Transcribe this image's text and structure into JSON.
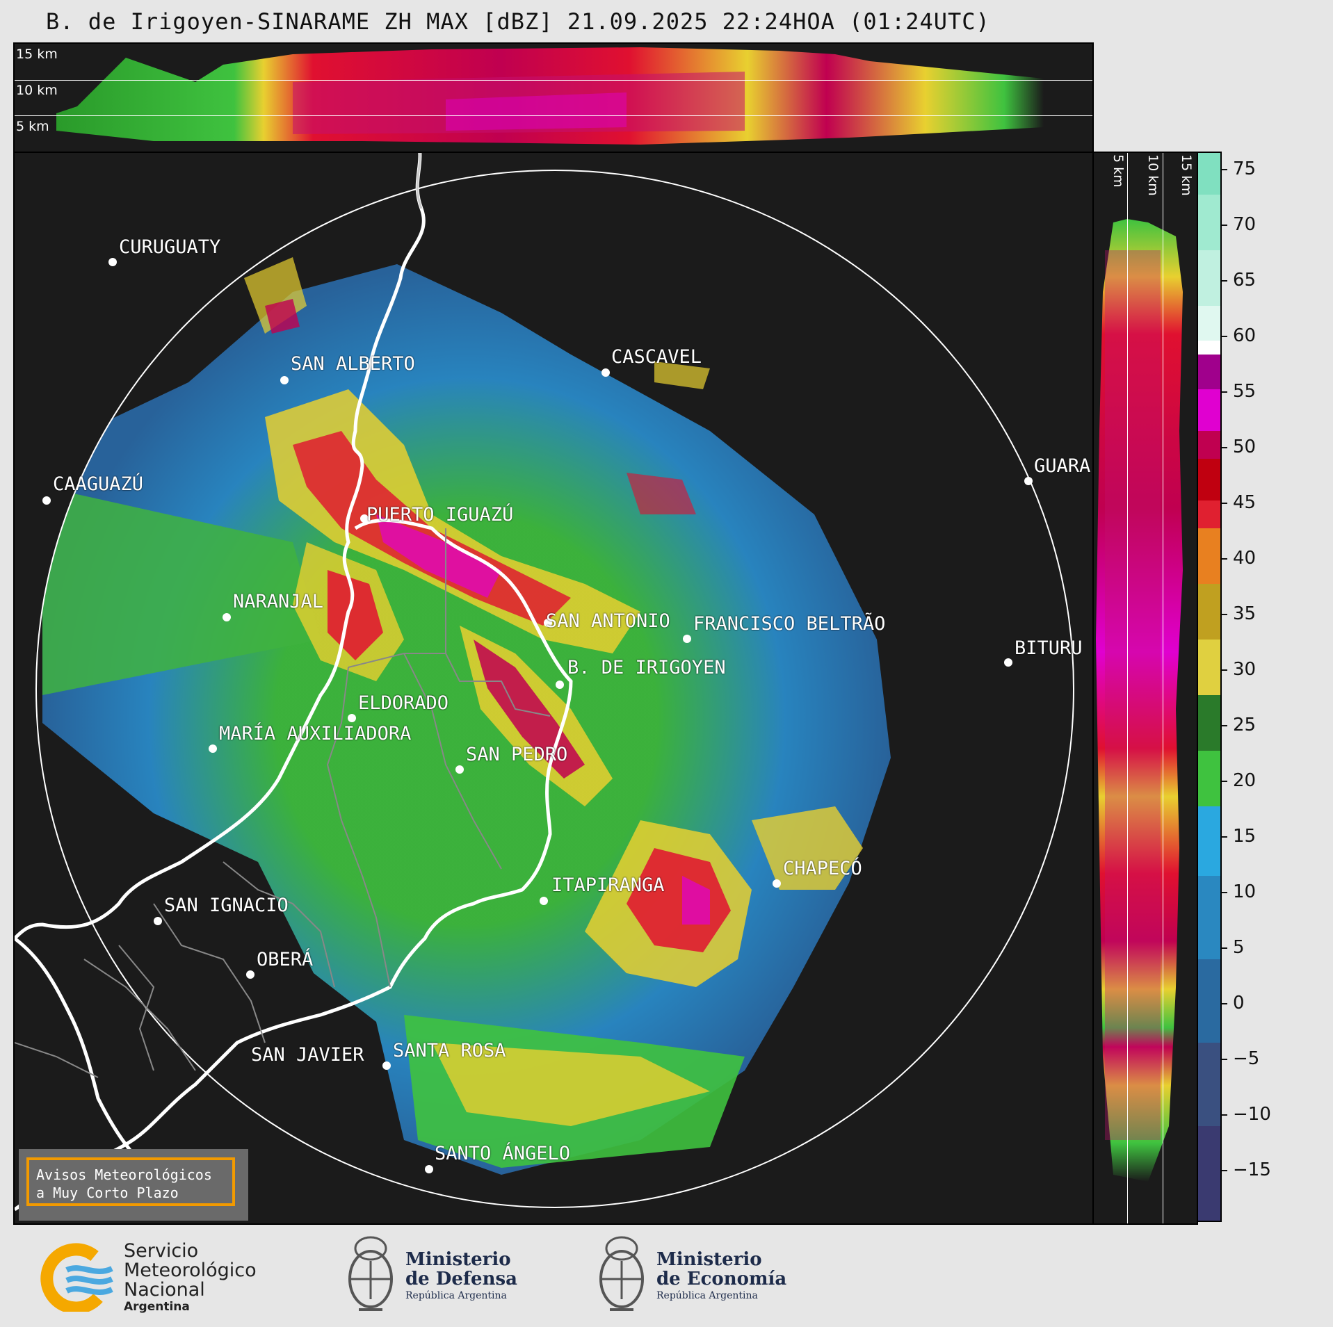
{
  "title": "B. de Irigoyen-SINARAME ZH MAX [dBZ] 21.09.2025 22:24HOA (01:24UTC)",
  "top_panel": {
    "height_labels": [
      "15 km",
      "10 km",
      "5 km"
    ]
  },
  "side_panel": {
    "height_labels": [
      "5 km",
      "10 km",
      "15 km"
    ]
  },
  "colorbar": {
    "unit": "dBZ",
    "ticks": [
      "75",
      "70",
      "65",
      "60",
      "55",
      "50",
      "45",
      "40",
      "35",
      "30",
      "25",
      "20",
      "15",
      "10",
      "5",
      "0",
      "−5",
      "−10",
      "−15"
    ]
  },
  "cities": [
    {
      "name": "CURUGUATY"
    },
    {
      "name": "SAN ALBERTO"
    },
    {
      "name": "CASCAVEL"
    },
    {
      "name": "CAAGUAZÚ"
    },
    {
      "name": "GUARA"
    },
    {
      "name": "PUERTO IGUAZÚ"
    },
    {
      "name": "NARANJAL"
    },
    {
      "name": "SAN ANTONIO"
    },
    {
      "name": "FRANCISCO BELTRÃO"
    },
    {
      "name": "BITURU"
    },
    {
      "name": "B. DE IRIGOYEN"
    },
    {
      "name": "ELDORADO"
    },
    {
      "name": "MARÍA AUXILIADORA"
    },
    {
      "name": "SAN PEDRO"
    },
    {
      "name": "CHAPECÓ"
    },
    {
      "name": "ITAPIRANGA"
    },
    {
      "name": "SAN IGNACIO"
    },
    {
      "name": "OBERÁ"
    },
    {
      "name": "SAN JAVIER"
    },
    {
      "name": "SANTA ROSA"
    },
    {
      "name": "SANTO ÁNGELO"
    }
  ],
  "aviso": {
    "line1": "Avisos Meteorológicos",
    "line2": "a Muy Corto Plazo"
  },
  "logos": {
    "smn": {
      "line1": "Servicio",
      "line2": "Meteorológico",
      "line3": "Nacional",
      "line4": "Argentina"
    },
    "defensa": {
      "line1": "Ministerio",
      "line2": "de Defensa",
      "line3": "República Argentina"
    },
    "economia": {
      "line1": "Ministerio",
      "line2": "de Economía",
      "line3": "República Argentina"
    }
  },
  "colors": {
    "background": "#e6e6e6",
    "panel": "#1b1b1b",
    "range_ring": "#ffffff",
    "aviso_border": "#f29a00"
  }
}
